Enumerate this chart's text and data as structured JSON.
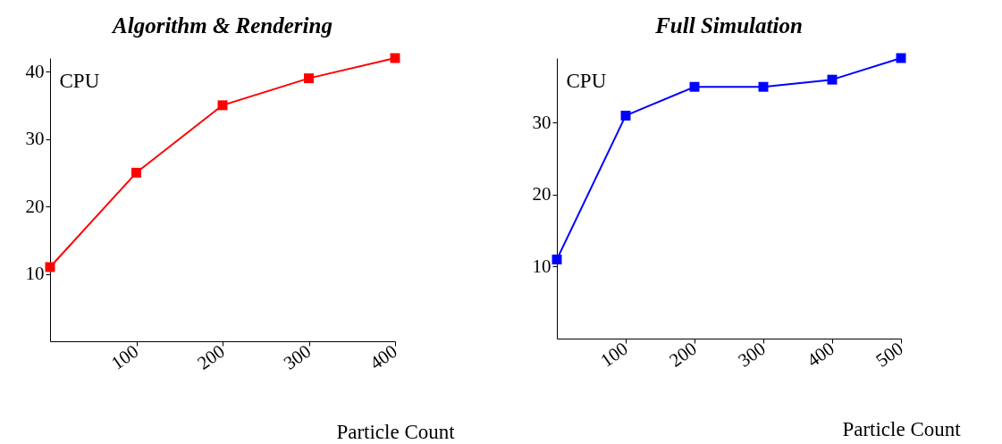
{
  "chart_data": [
    {
      "type": "line",
      "title": "Algorithm & Rendering",
      "xlabel": "Particle Count",
      "ylabel": "CPU",
      "x": [
        0,
        100,
        200,
        300,
        400
      ],
      "series": [
        {
          "color": "#ff0000",
          "values": [
            11,
            25,
            35,
            39,
            42
          ]
        }
      ],
      "xlim": [
        0,
        400
      ],
      "ylim": [
        0,
        42
      ],
      "xticks": [
        100,
        200,
        300,
        400
      ],
      "yticks": [
        10,
        20,
        30,
        40
      ],
      "marker": "square",
      "grid": false
    },
    {
      "type": "line",
      "title": "Full Simulation",
      "xlabel": "Particle Count",
      "ylabel": "CPU",
      "x": [
        0,
        100,
        200,
        300,
        400,
        500
      ],
      "series": [
        {
          "color": "#0000ff",
          "values": [
            11,
            31,
            35,
            35,
            36,
            39
          ]
        }
      ],
      "xlim": [
        0,
        500
      ],
      "ylim": [
        0,
        39
      ],
      "xticks": [
        100,
        200,
        300,
        400,
        500
      ],
      "yticks": [
        10,
        20,
        30
      ],
      "marker": "square",
      "grid": false
    }
  ]
}
